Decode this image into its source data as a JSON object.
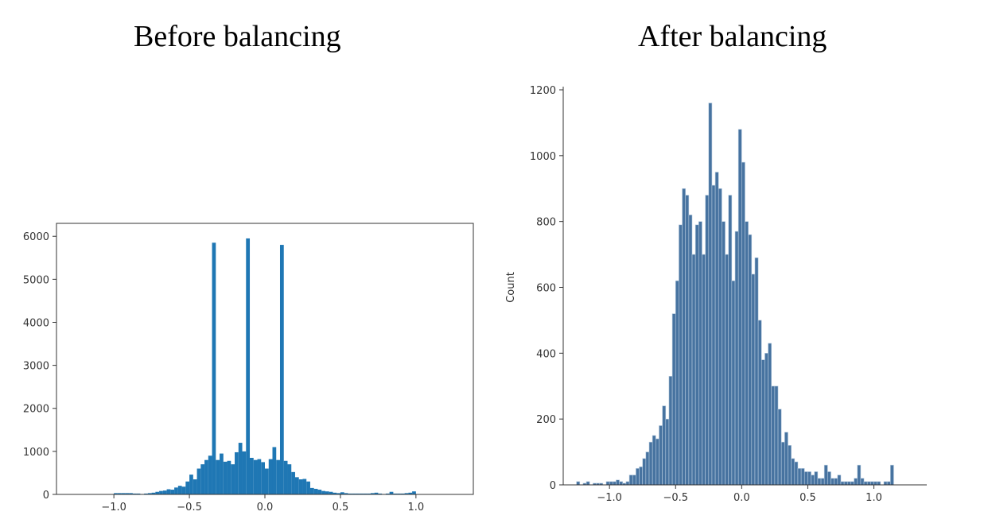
{
  "chart_data": [
    {
      "type": "bar",
      "title": "Before balancing",
      "xlabel": "",
      "ylabel": "",
      "xlim": [
        -1.38,
        1.38
      ],
      "ylim": [
        0,
        6300
      ],
      "xticks": [
        -1.0,
        -0.5,
        0.0,
        0.5,
        1.0
      ],
      "xtick_labels": [
        "−1.0",
        "−0.5",
        "0.0",
        "0.5",
        "1.0"
      ],
      "yticks": [
        0,
        1000,
        2000,
        3000,
        4000,
        5000,
        6000
      ],
      "ytick_labels": [
        "0",
        "1000",
        "2000",
        "3000",
        "4000",
        "5000",
        "6000"
      ],
      "bin_start": -1.0,
      "bin_width": 0.025,
      "values": [
        30,
        30,
        30,
        30,
        30,
        20,
        20,
        10,
        20,
        30,
        40,
        60,
        80,
        90,
        120,
        110,
        160,
        200,
        180,
        300,
        460,
        350,
        600,
        700,
        800,
        900,
        5850,
        800,
        950,
        760,
        780,
        700,
        980,
        1200,
        1000,
        5950,
        850,
        800,
        820,
        750,
        600,
        820,
        1100,
        800,
        5800,
        780,
        700,
        520,
        400,
        350,
        360,
        300,
        150,
        130,
        110,
        80,
        70,
        60,
        40,
        30,
        50,
        30,
        20,
        20,
        20,
        20,
        20,
        20,
        30,
        40,
        20,
        10,
        20,
        60,
        20,
        20,
        20,
        30,
        40,
        70
      ],
      "color": "#1f77b4"
    },
    {
      "type": "bar",
      "title": "After balancing",
      "xlabel": "",
      "ylabel": "Count",
      "xlim": [
        -1.35,
        1.4
      ],
      "ylim": [
        0,
        1200
      ],
      "xticks": [
        -1.0,
        -0.5,
        0.0,
        0.5,
        1.0
      ],
      "xtick_labels": [
        "−1.0",
        "−0.5",
        "0.0",
        "0.5",
        "1.0"
      ],
      "yticks": [
        0,
        200,
        400,
        600,
        800,
        1000,
        1200
      ],
      "ytick_labels": [
        "0",
        "200",
        "400",
        "600",
        "800",
        "1000",
        "1200"
      ],
      "bin_start": -1.25,
      "bin_width": 0.025,
      "values": [
        10,
        0,
        5,
        10,
        0,
        5,
        5,
        5,
        0,
        10,
        10,
        10,
        15,
        10,
        5,
        10,
        30,
        30,
        50,
        55,
        80,
        100,
        130,
        150,
        140,
        180,
        240,
        200,
        330,
        520,
        620,
        790,
        900,
        880,
        820,
        700,
        790,
        800,
        700,
        880,
        1160,
        910,
        950,
        900,
        800,
        700,
        880,
        620,
        770,
        1080,
        980,
        800,
        760,
        640,
        690,
        500,
        380,
        400,
        430,
        300,
        300,
        230,
        130,
        160,
        120,
        80,
        70,
        50,
        50,
        40,
        40,
        30,
        40,
        20,
        20,
        60,
        40,
        20,
        20,
        30,
        10,
        10,
        10,
        10,
        20,
        60,
        20,
        10,
        10,
        10,
        10,
        10,
        0,
        10,
        10,
        60
      ]
    }
  ]
}
